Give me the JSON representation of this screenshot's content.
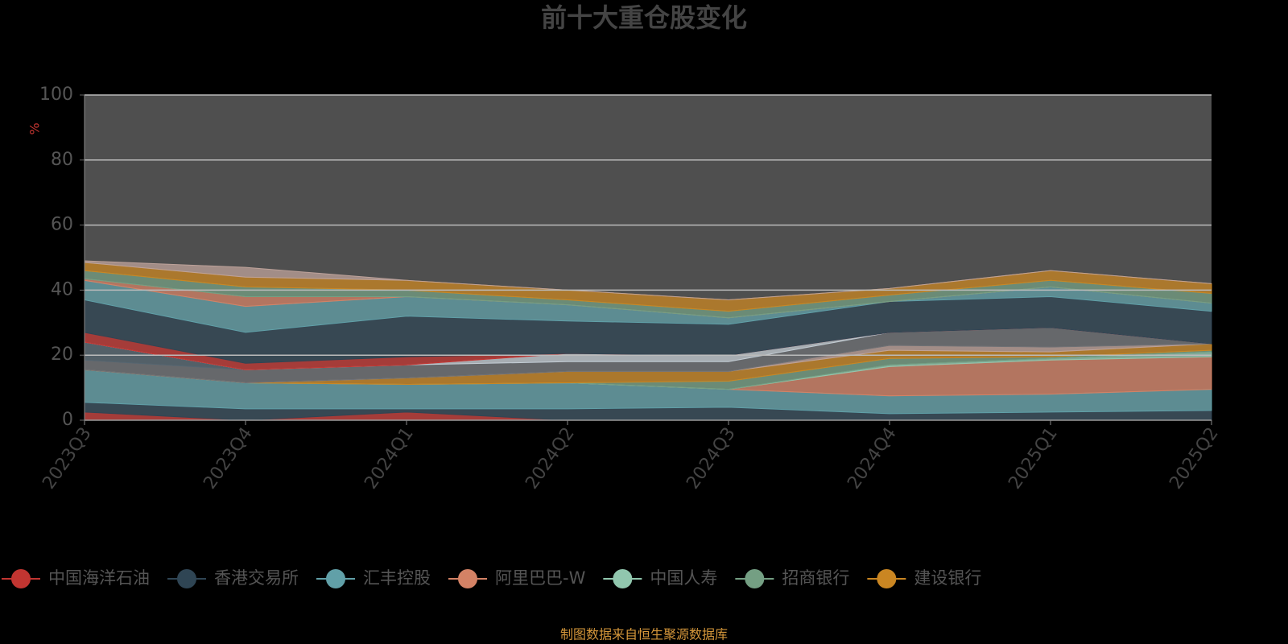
{
  "chart_data": {
    "type": "stacked_area",
    "title": "前十大重仓股变化",
    "y_label": "%",
    "footer": "制图数据来自恒生聚源数据库",
    "categories": [
      "2023Q3",
      "2023Q4",
      "2024Q1",
      "2024Q2",
      "2024Q3",
      "2024Q4",
      "2025Q1",
      "2025Q2"
    ],
    "ylim": [
      0,
      100
    ],
    "yticks": [
      0,
      20,
      40,
      60,
      80,
      100
    ],
    "grid": true,
    "series": [
      {
        "name": "中国海洋石油",
        "color": "#c23531",
        "values": [
          2.5,
          0,
          2.5,
          0,
          0,
          0,
          0,
          0
        ]
      },
      {
        "name": "香港交易所",
        "color": "#2f4554",
        "values": [
          3,
          3.5,
          1,
          3.5,
          4,
          2,
          2.5,
          3
        ]
      },
      {
        "name": "汇丰控股",
        "color": "#61a0a8",
        "values": [
          10,
          8,
          7.5,
          8,
          5.5,
          5.5,
          5.5,
          6.5
        ]
      },
      {
        "name": "阿里巴巴-W",
        "color": "#d48265",
        "values": [
          0,
          0,
          0,
          0,
          0,
          9,
          10.5,
          10
        ]
      },
      {
        "name": "中国人寿",
        "color": "#91c7ae",
        "values": [
          0,
          0,
          0,
          0,
          0,
          0.5,
          0.5,
          1.5
        ]
      },
      {
        "name": "招商银行",
        "color": "#749f83",
        "values": [
          0,
          0,
          0,
          0,
          2.5,
          2,
          0.5,
          0.5
        ]
      },
      {
        "name": "建设银行",
        "color": "#ca8622",
        "values": [
          0,
          0,
          2,
          3.5,
          3,
          2.5,
          1.5,
          2
        ]
      },
      {
        "color": "#bda29a",
        "values": [
          0,
          0,
          0,
          0,
          0,
          1.5,
          1.5,
          0
        ]
      },
      {
        "color": "#6e7074",
        "values": [
          3,
          4,
          4,
          3,
          3,
          4,
          6,
          0
        ]
      },
      {
        "color": "#546570",
        "values": [
          5.5,
          0,
          0,
          0,
          0,
          0,
          0,
          0
        ]
      },
      {
        "color": "#c4ccd3",
        "values": [
          0,
          0,
          0,
          2.5,
          2,
          0,
          0,
          0
        ]
      },
      {
        "color": "#c23531",
        "values": [
          3,
          2,
          2.5,
          0,
          0,
          0,
          0,
          0
        ]
      },
      {
        "color": "#2f4554",
        "values": [
          10,
          9.5,
          12.5,
          10,
          9.5,
          9.5,
          9.5,
          10
        ]
      },
      {
        "color": "#61a0a8",
        "values": [
          6,
          8,
          6,
          5,
          2,
          0,
          3,
          2.5
        ]
      },
      {
        "color": "#d48265",
        "values": [
          0.5,
          3,
          0,
          0,
          0,
          0,
          0,
          0
        ]
      },
      {
        "color": "#749f83",
        "values": [
          2.5,
          3,
          2,
          1.5,
          2,
          2,
          2,
          3
        ]
      },
      {
        "color": "#ca8622",
        "values": [
          2.5,
          3,
          3,
          3,
          3.5,
          2,
          3,
          3
        ]
      },
      {
        "color": "#bda29a",
        "values": [
          0.5,
          3,
          0,
          0,
          0,
          0,
          0,
          0
        ]
      }
    ]
  }
}
